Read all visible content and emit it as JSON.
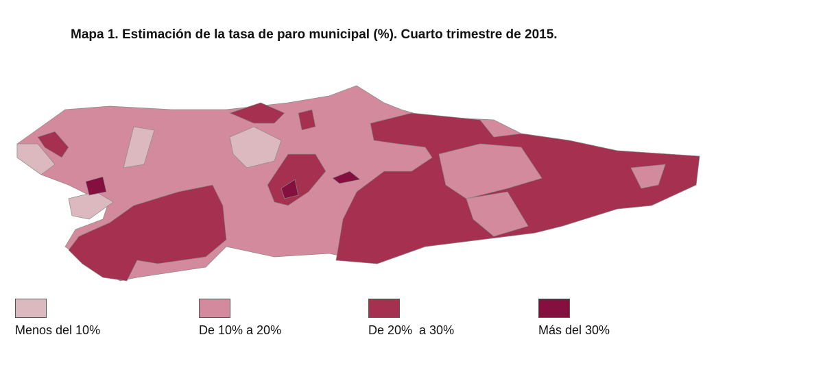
{
  "title": "Mapa 1. Estimación de la tasa de paro municipal (%). Cuarto trimestre de 2015.",
  "legend": [
    {
      "label": "Menos del 10%",
      "color": "#dcb8bf"
    },
    {
      "label": "De 10% a 20%",
      "color": "#d38a9c"
    },
    {
      "label": "De 20%  a 30%",
      "color": "#a5304f"
    },
    {
      "label": "Más del 30%",
      "color": "#851040"
    }
  ]
}
